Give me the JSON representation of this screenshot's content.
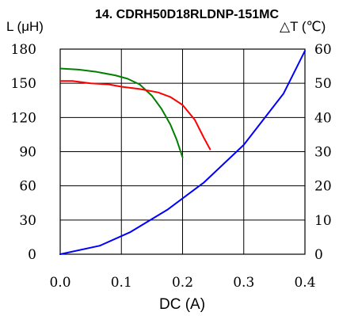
{
  "chart_data": {
    "type": "line",
    "title": "14. CDRH50D18RLDNP-151MC",
    "xlabel": "DC (A)",
    "ylabel_left": "L (μH)",
    "ylabel_right": "△T (℃)",
    "xlim": [
      0,
      0.4
    ],
    "ylim_left": [
      0,
      180
    ],
    "ylim_right": [
      0,
      60
    ],
    "x_ticks": [
      "0.0",
      "0.1",
      "0.2",
      "0.3",
      "0.4"
    ],
    "y_left_ticks": [
      "0",
      "30",
      "60",
      "90",
      "120",
      "150",
      "180"
    ],
    "y_right_ticks": [
      "0",
      "10",
      "20",
      "30",
      "40",
      "50",
      "60"
    ],
    "grid": true,
    "legend": "none",
    "series": [
      {
        "axis": "left",
        "color": "#008000",
        "x": [
          0.0,
          0.03,
          0.06,
          0.09,
          0.11,
          0.13,
          0.15,
          0.165,
          0.18,
          0.19,
          0.2
        ],
        "y": [
          163,
          162,
          160,
          157,
          154,
          149,
          139,
          128,
          114,
          101,
          85
        ]
      },
      {
        "axis": "left",
        "color": "#ff0000",
        "x": [
          0.0,
          0.02,
          0.05,
          0.08,
          0.1,
          0.13,
          0.16,
          0.18,
          0.2,
          0.22,
          0.235,
          0.245
        ],
        "y": [
          152,
          152,
          150,
          149,
          147,
          145,
          142,
          138,
          131,
          118,
          102,
          92
        ]
      },
      {
        "axis": "right",
        "color": "#0000ff",
        "x": [
          0.0,
          0.065,
          0.115,
          0.175,
          0.235,
          0.3,
          0.365,
          0.4
        ],
        "y": [
          0,
          2.5,
          6.5,
          13,
          21,
          32,
          47,
          59.5
        ]
      }
    ]
  }
}
